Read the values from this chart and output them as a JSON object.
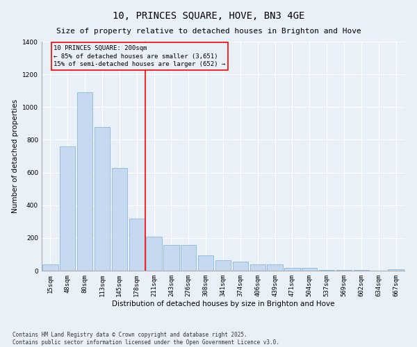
{
  "title": "10, PRINCES SQUARE, HOVE, BN3 4GE",
  "subtitle": "Size of property relative to detached houses in Brighton and Hove",
  "xlabel": "Distribution of detached houses by size in Brighton and Hove",
  "ylabel": "Number of detached properties",
  "categories": [
    "15sqm",
    "48sqm",
    "80sqm",
    "113sqm",
    "145sqm",
    "178sqm",
    "211sqm",
    "243sqm",
    "276sqm",
    "308sqm",
    "341sqm",
    "374sqm",
    "406sqm",
    "439sqm",
    "471sqm",
    "504sqm",
    "537sqm",
    "569sqm",
    "602sqm",
    "634sqm",
    "667sqm"
  ],
  "values": [
    40,
    760,
    1090,
    880,
    630,
    320,
    210,
    155,
    155,
    95,
    65,
    55,
    40,
    40,
    18,
    18,
    5,
    5,
    5,
    1,
    8
  ],
  "bar_color": "#c6d9f0",
  "bar_edge_color": "#7bafd4",
  "vline_x_index": 6,
  "vline_color": "red",
  "annotation_text": "10 PRINCES SQUARE: 200sqm\n← 85% of detached houses are smaller (3,651)\n15% of semi-detached houses are larger (652) →",
  "annotation_box_color": "red",
  "ylim": [
    0,
    1400
  ],
  "yticks": [
    0,
    200,
    400,
    600,
    800,
    1000,
    1200,
    1400
  ],
  "footer_text": "Contains HM Land Registry data © Crown copyright and database right 2025.\nContains public sector information licensed under the Open Government Licence v3.0.",
  "bg_color": "#eaf0f8",
  "grid_color": "white",
  "title_fontsize": 10,
  "label_fontsize": 7.5,
  "tick_fontsize": 6.5,
  "annotation_fontsize": 6.5,
  "footer_fontsize": 5.5
}
